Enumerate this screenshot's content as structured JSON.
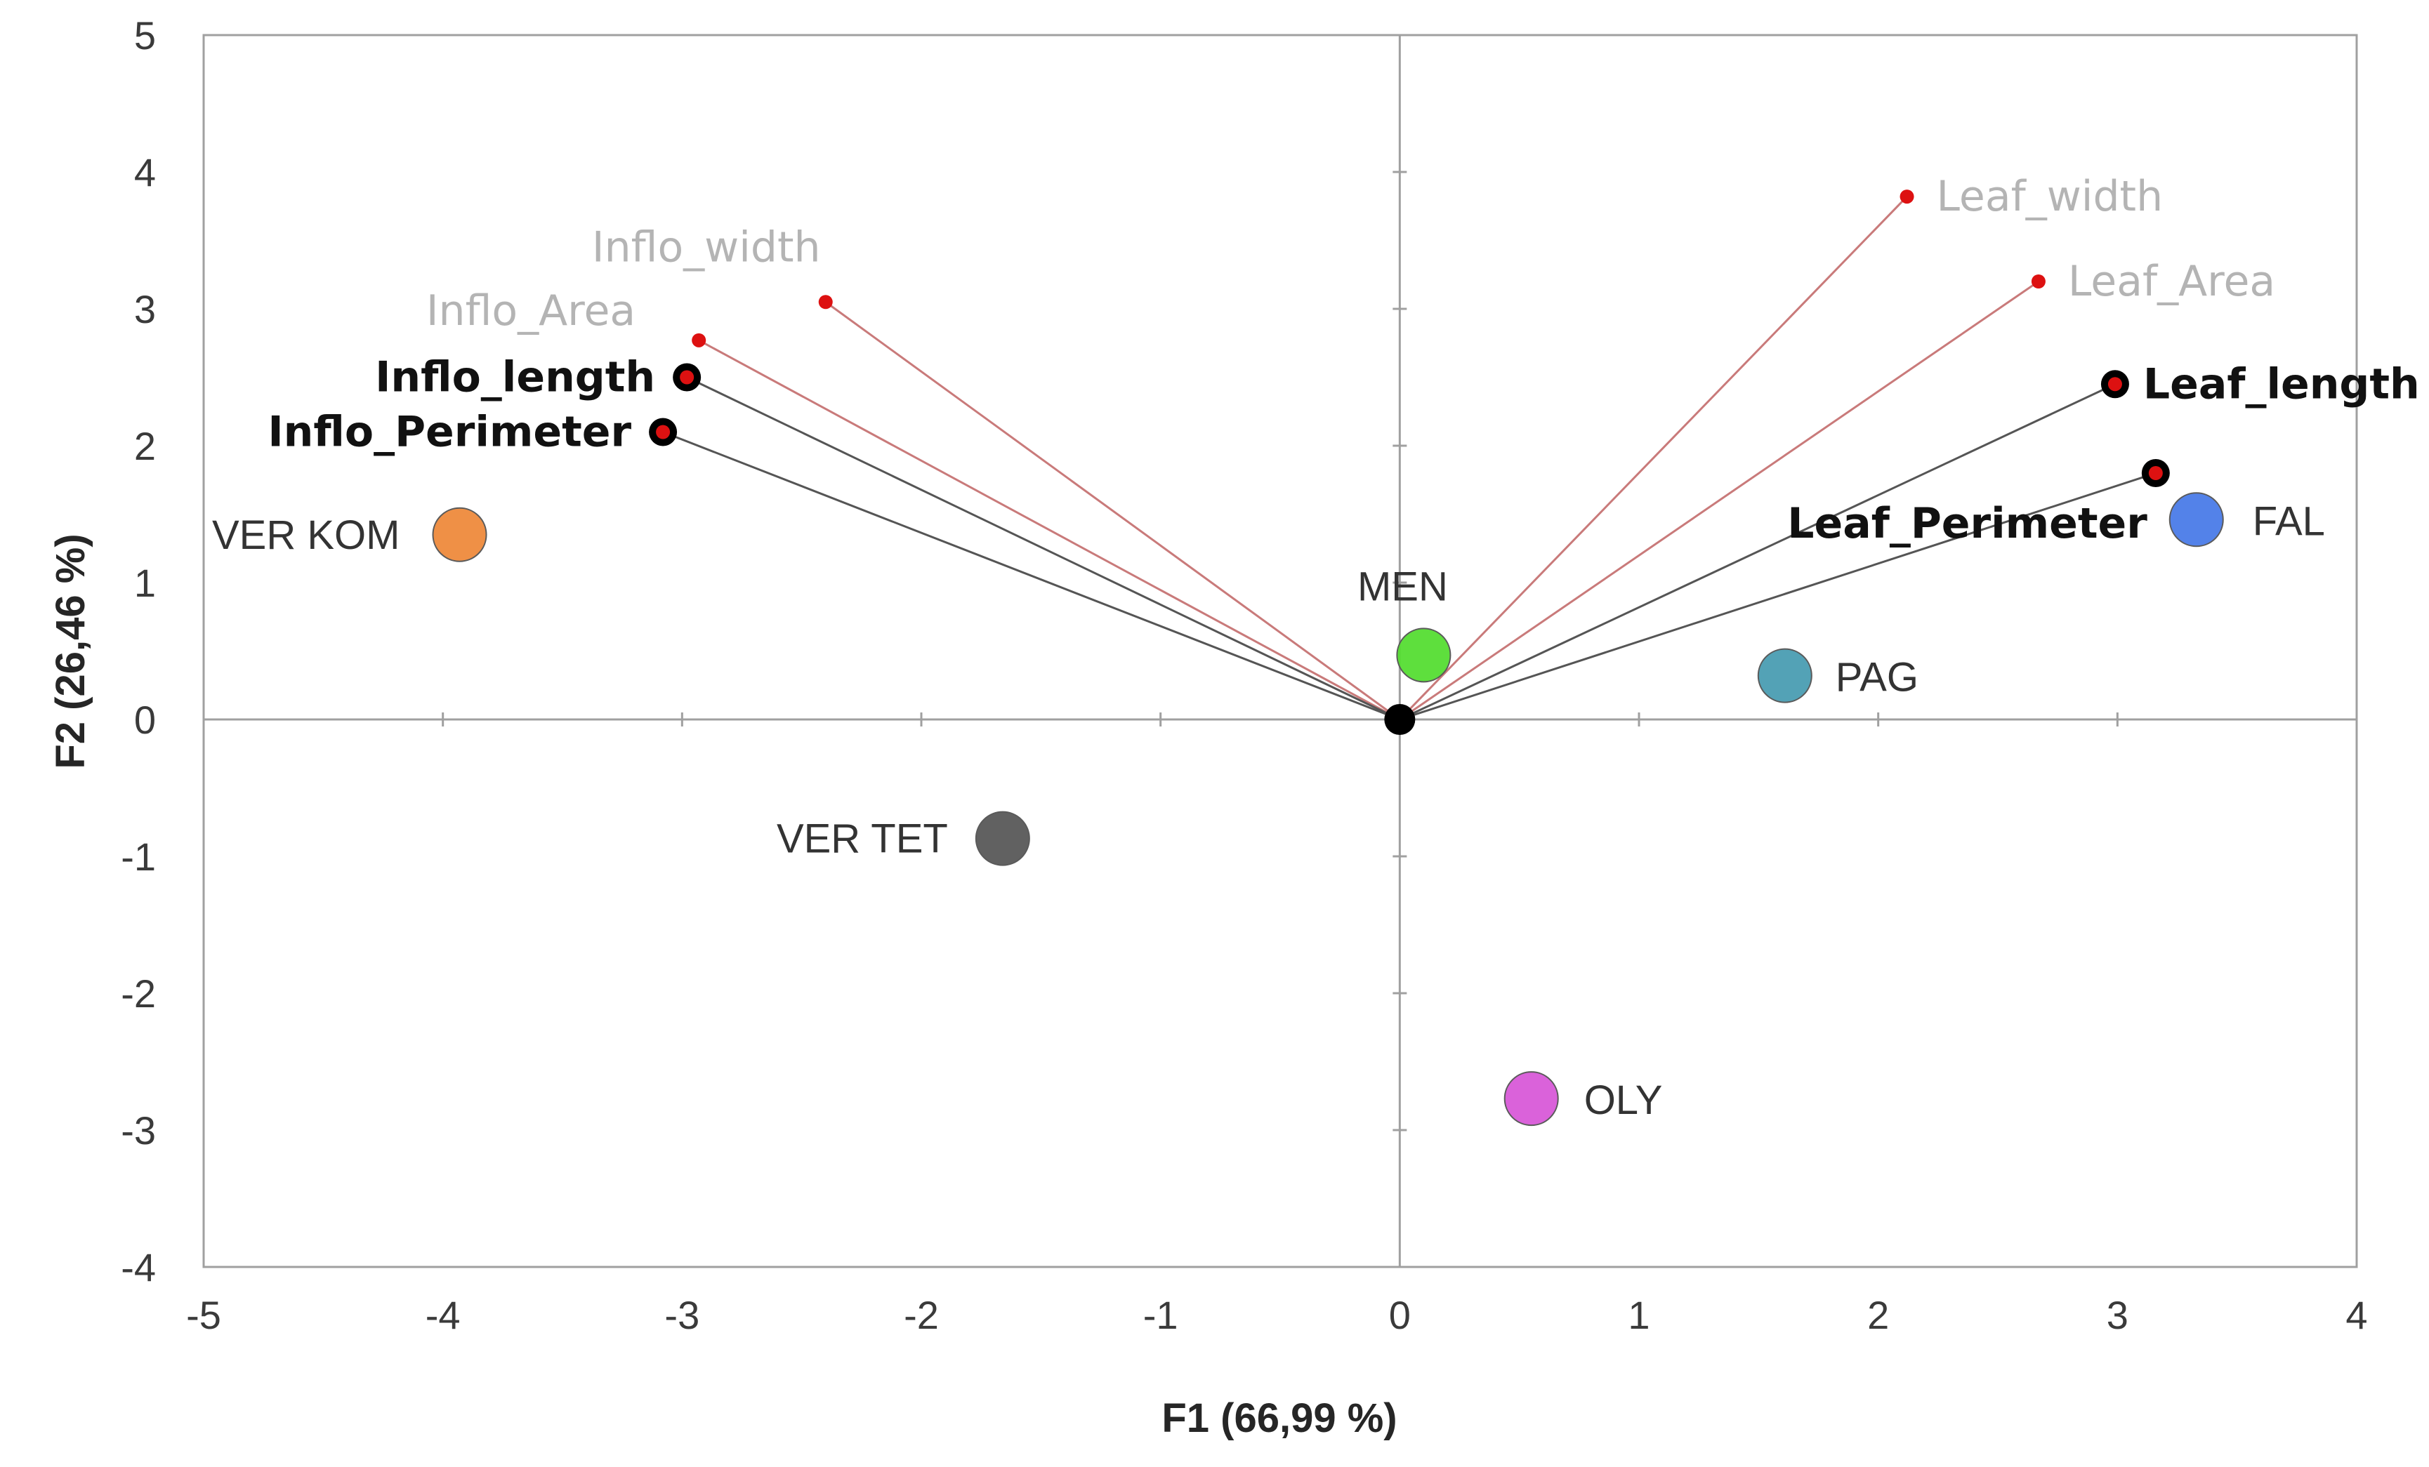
{
  "chart_data": {
    "type": "scatter",
    "subtype": "biplot",
    "title": "",
    "xlabel": "F1 (66,99 %)",
    "ylabel": "F2 (26,46 %)",
    "xlim": [
      -5,
      4
    ],
    "ylim": [
      -4,
      5
    ],
    "xticks": [
      -5,
      -4,
      -3,
      -2,
      -1,
      0,
      1,
      2,
      3,
      4
    ],
    "yticks": [
      -4,
      -3,
      -2,
      -1,
      0,
      1,
      2,
      3,
      4,
      5
    ],
    "grid": false,
    "variables": [
      {
        "name": "Inflo_width",
        "x": -2.4,
        "y": 3.05,
        "style": "light"
      },
      {
        "name": "Inflo_Area",
        "x": -2.93,
        "y": 2.77,
        "style": "light"
      },
      {
        "name": "Inflo_length",
        "x": -2.98,
        "y": 2.5,
        "style": "bold"
      },
      {
        "name": "Inflo_Perimeter",
        "x": -3.08,
        "y": 2.1,
        "style": "bold"
      },
      {
        "name": "Leaf_width",
        "x": 2.12,
        "y": 3.82,
        "style": "light"
      },
      {
        "name": "Leaf_Area",
        "x": 2.67,
        "y": 3.2,
        "style": "light"
      },
      {
        "name": "Leaf_length",
        "x": 2.99,
        "y": 2.45,
        "style": "bold"
      },
      {
        "name": "Leaf_Perimeter",
        "x": 3.16,
        "y": 1.8,
        "style": "bold"
      }
    ],
    "observations": [
      {
        "name": "VER KOM",
        "x": -3.93,
        "y": 1.35,
        "color": "#ee8a3c"
      },
      {
        "name": "VER TET",
        "x": -1.66,
        "y": -0.87,
        "color": "#595959"
      },
      {
        "name": "MEN",
        "x": 0.1,
        "y": 0.47,
        "color": "#55dd33"
      },
      {
        "name": "PAG",
        "x": 1.61,
        "y": 0.32,
        "color": "#4a9db2"
      },
      {
        "name": "FAL",
        "x": 3.33,
        "y": 1.46,
        "color": "#4a7be8"
      },
      {
        "name": "OLY",
        "x": 0.55,
        "y": -2.77,
        "color": "#d85ad8"
      }
    ],
    "colors": {
      "bold_vector": "#555555",
      "light_vector": "#c97a7a",
      "endpoint_red": "#dd1111",
      "frame": "#a0a0a0"
    }
  }
}
